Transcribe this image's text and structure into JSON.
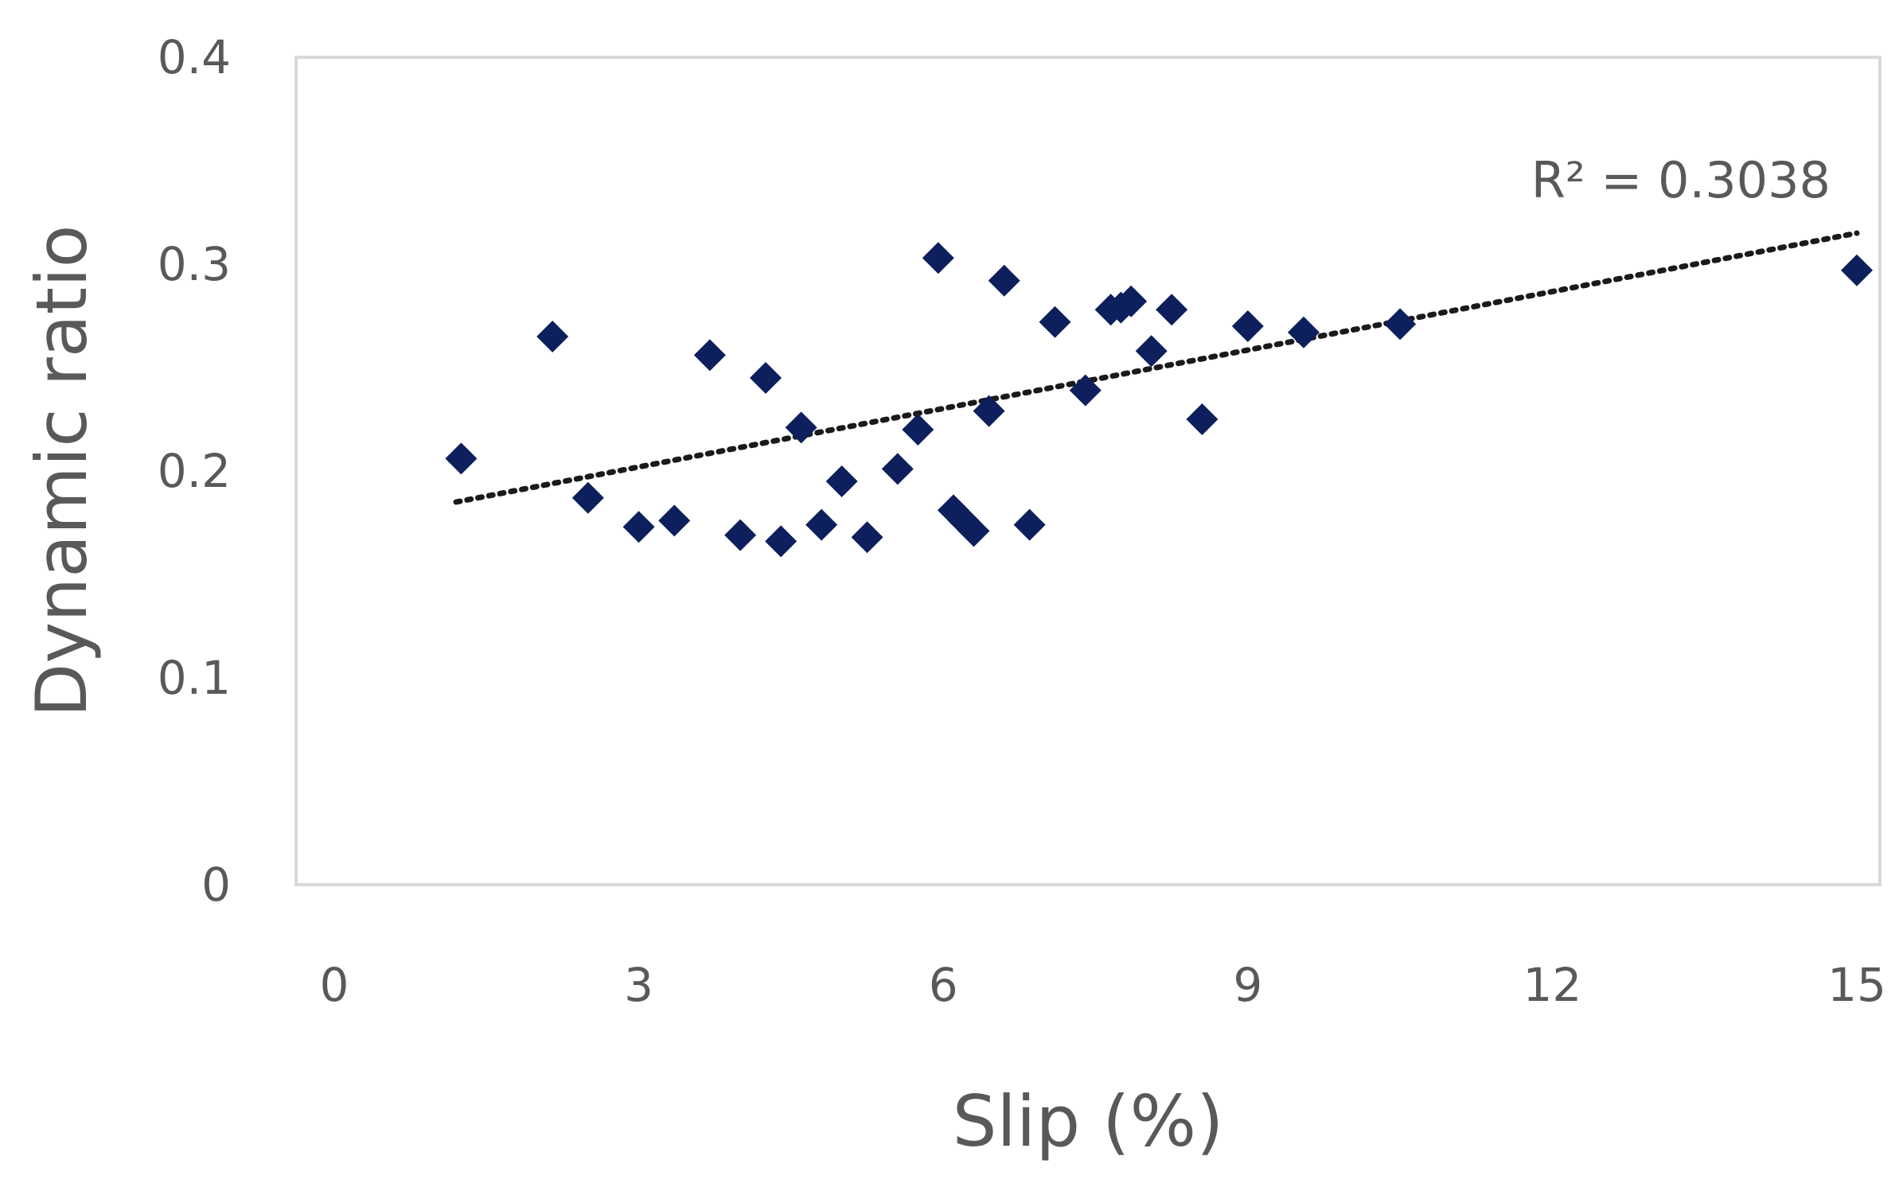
{
  "chart_data": {
    "type": "scatter",
    "xlabel": "Slip (%)",
    "ylabel": "Dynamic ratio",
    "xlim": [
      0,
      15
    ],
    "ylim": [
      0,
      0.4
    ],
    "xticks": [
      "0",
      "3",
      "6",
      "9",
      "12",
      "15"
    ],
    "yticks": [
      "0",
      "0.1",
      "0.2",
      "0.3",
      "0.4"
    ],
    "grid": false,
    "marker_color": "#0d1f5c",
    "trendline": {
      "type": "linear",
      "style": "dotted",
      "x_range": [
        1.2,
        15.0
      ],
      "y_start": 0.185,
      "y_end": 0.315
    },
    "annotation": "R² = 0.3038",
    "series": [
      {
        "x": [
          1.25,
          2.15,
          2.5,
          3.0,
          3.35,
          3.7,
          4.0,
          4.25,
          4.4,
          4.6,
          4.8,
          5.0,
          5.25,
          5.55,
          5.75,
          5.95,
          6.1,
          6.2,
          6.3,
          6.45,
          6.6,
          6.85,
          7.1,
          7.4,
          7.65,
          7.75,
          7.85,
          8.05,
          8.25,
          8.55,
          9.0,
          9.55,
          10.5,
          15.0
        ],
        "y": [
          0.206,
          0.265,
          0.187,
          0.173,
          0.176,
          0.256,
          0.169,
          0.245,
          0.166,
          0.221,
          0.174,
          0.195,
          0.168,
          0.201,
          0.22,
          0.303,
          0.181,
          0.176,
          0.171,
          0.229,
          0.292,
          0.174,
          0.272,
          0.239,
          0.278,
          0.279,
          0.282,
          0.258,
          0.278,
          0.225,
          0.27,
          0.267,
          0.271,
          0.297
        ]
      }
    ]
  }
}
